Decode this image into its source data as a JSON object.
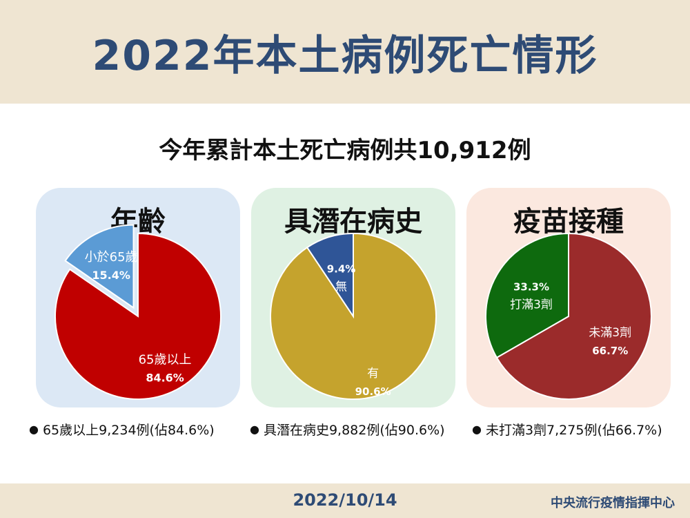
{
  "header": {
    "title": "2022年本土病例死亡情形"
  },
  "summary": "今年累計本土死亡病例共10,912例",
  "chart_data": [
    {
      "type": "pie",
      "title": "年齡",
      "slices": [
        {
          "label": "65歲以上",
          "value": 84.6,
          "value_label": "84.6%",
          "color": "#c00000"
        },
        {
          "label": "小於65歲",
          "value": 15.4,
          "value_label": "15.4%",
          "color": "#5b9bd5"
        }
      ],
      "card_color": "#dce8f5"
    },
    {
      "type": "pie",
      "title": "具潛在病史",
      "slices": [
        {
          "label": "有",
          "value": 90.6,
          "value_label": "90.6%",
          "color": "#c5a32d"
        },
        {
          "label": "無",
          "value": 9.4,
          "value_label": "9.4%",
          "color": "#2f5597"
        }
      ],
      "card_color": "#dff1e3"
    },
    {
      "type": "pie",
      "title": "疫苗接種",
      "slices": [
        {
          "label": "未滿3劑",
          "value": 66.7,
          "value_label": "66.7%",
          "color": "#9b2b2b"
        },
        {
          "label": "打滿3劑",
          "value": 33.3,
          "value_label": "33.3%",
          "color": "#0e6a0e"
        }
      ],
      "card_color": "#fbe8df"
    }
  ],
  "notes": [
    "65歲以上9,234例(佔84.6%)",
    "具潛在病史9,882例(佔90.6%)",
    "未打滿3劑7,275例(佔66.7%)"
  ],
  "footer": {
    "date": "2022/10/14",
    "org": "中央流行疫情指揮中心"
  }
}
